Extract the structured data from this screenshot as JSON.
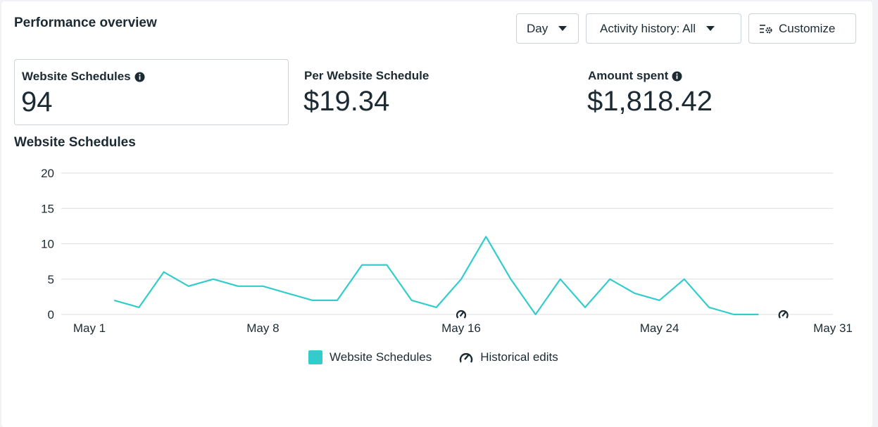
{
  "header": {
    "title": "Performance overview",
    "day_label": "Day",
    "activity_label": "Activity history: All",
    "customize_label": "Customize"
  },
  "metrics": [
    {
      "label": "Website Schedules",
      "value": "94",
      "info": true
    },
    {
      "label": "Per Website Schedule",
      "value": "$19.34",
      "info": false
    },
    {
      "label": "Amount spent",
      "value": "$1,818.42",
      "info": true
    }
  ],
  "chart_title": "Website Schedules",
  "legend": {
    "series_label": "Website Schedules",
    "edits_label": "Historical edits"
  },
  "colors": {
    "series": "#33cccc",
    "grid": "#dadde1",
    "text": "#1c2b33"
  },
  "chart_data": {
    "type": "line",
    "title": "Website Schedules",
    "xlabel": "",
    "ylabel": "",
    "ylim": [
      0,
      20
    ],
    "yticks": [
      "0",
      "5",
      "10",
      "15",
      "20"
    ],
    "xlim": [
      1,
      31
    ],
    "xticks": [
      {
        "day": 1,
        "label": "May 1"
      },
      {
        "day": 8,
        "label": "May 8"
      },
      {
        "day": 16,
        "label": "May 16"
      },
      {
        "day": 24,
        "label": "May 24"
      },
      {
        "day": 31,
        "label": "May 31"
      }
    ],
    "series": [
      {
        "name": "Website Schedules",
        "x": [
          2,
          3,
          4,
          5,
          6,
          7,
          8,
          9,
          10,
          11,
          12,
          13,
          14,
          15,
          16,
          17,
          18,
          19,
          20,
          21,
          22,
          23,
          24,
          25,
          26,
          27,
          28
        ],
        "values": [
          2,
          1,
          6,
          4,
          5,
          4,
          4,
          3,
          2,
          2,
          7,
          7,
          2,
          1,
          5,
          11,
          5,
          0,
          5,
          1,
          5,
          3,
          2,
          5,
          1,
          0,
          0
        ]
      }
    ],
    "historical_edits": [
      {
        "day": 16,
        "value": 0
      },
      {
        "day": 29,
        "value": 0
      }
    ]
  }
}
